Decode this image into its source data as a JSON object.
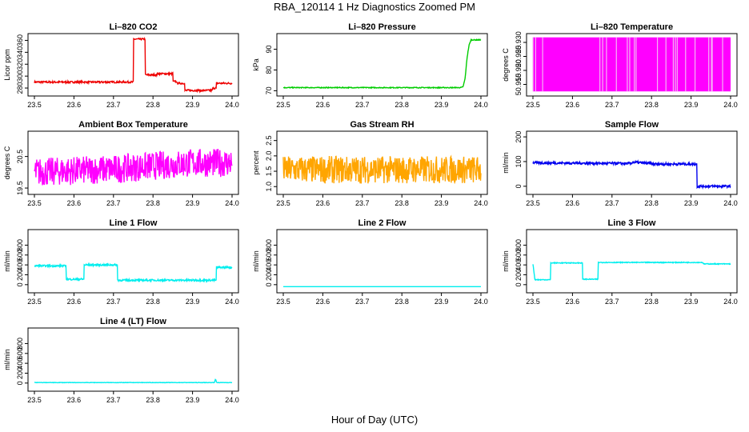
{
  "title": "RBA_120114  1 Hz Diagnostics Zoomed PM",
  "xlabel": "Hour of Day (UTC)",
  "colors": {
    "red": "#ee0000",
    "green": "#00cc00",
    "magenta": "#ff00ff",
    "orange": "#ffa500",
    "blue": "#0000ee",
    "cyan": "#00eeee"
  },
  "chart_data": [
    {
      "type": "line",
      "title": "Li–820 CO2",
      "ylabel": "Licor ppm",
      "color": "red",
      "xlim": [
        23.5,
        24.0
      ],
      "xticks": [
        "23.5",
        "23.6",
        "23.7",
        "23.8",
        "23.9",
        "24.0"
      ],
      "ylim": [
        272,
        366
      ],
      "yticks": [
        "280",
        "300",
        "320",
        "340",
        "360"
      ],
      "ytick_values": [
        280,
        300,
        320,
        340,
        360
      ],
      "series": [
        {
          "x": [
            23.5,
            23.75,
            23.75,
            23.78,
            23.78,
            23.81,
            23.81,
            23.85,
            23.85,
            23.86,
            23.86,
            23.88,
            23.88,
            23.95,
            23.95,
            23.96,
            23.96,
            24.0
          ],
          "y": [
            290,
            290,
            362,
            362,
            302,
            302,
            304,
            304,
            291,
            291,
            288,
            288,
            276,
            276,
            280,
            280,
            288,
            288
          ],
          "noise": 1.5
        }
      ]
    },
    {
      "type": "line",
      "title": "Li–820 Pressure",
      "ylabel": "kPa",
      "color": "green",
      "xlim": [
        23.5,
        24.0
      ],
      "xticks": [
        "23.5",
        "23.6",
        "23.7",
        "23.8",
        "23.9",
        "24.0"
      ],
      "ylim": [
        69,
        96
      ],
      "yticks": [
        "70",
        "80",
        "90"
      ],
      "ytick_values": [
        70,
        80,
        90
      ],
      "series": [
        {
          "x": [
            23.5,
            23.95,
            23.955,
            23.96,
            23.965,
            23.97,
            23.975,
            24.0
          ],
          "y": [
            71.5,
            71.5,
            72,
            76,
            86,
            92,
            94.5,
            94.5
          ],
          "noise": 0.2
        }
      ]
    },
    {
      "type": "line",
      "title": "Li–820 Temperature",
      "ylabel": "degrees C",
      "color": "magenta",
      "xlim": [
        23.5,
        24.0
      ],
      "xticks": [
        "23.5",
        "23.6",
        "23.7",
        "23.8",
        "23.9",
        "24.0"
      ],
      "ylim": [
        50.912,
        50.932
      ],
      "yticks": [
        "50.915",
        "50.920",
        "50.925",
        "50.930"
      ],
      "ytick_values": [
        50.915,
        50.92,
        50.925,
        50.93
      ],
      "series": [
        {
          "band": [
            50.9125,
            50.9318
          ],
          "x": [
            23.5,
            24.0
          ],
          "y": [
            50.92,
            50.92
          ]
        }
      ]
    },
    {
      "type": "line",
      "title": "Ambient Box Temperature",
      "ylabel": "degrees C",
      "color": "magenta",
      "xlim": [
        23.5,
        24.0
      ],
      "xticks": [
        "23.5",
        "23.6",
        "23.7",
        "23.8",
        "23.9",
        "24.0"
      ],
      "ylim": [
        19.4,
        21.2
      ],
      "yticks": [
        "19.5",
        "20.5"
      ],
      "ytick_values": [
        19.5,
        20.5
      ],
      "series": [
        {
          "x": [
            23.5,
            23.7,
            23.9,
            24.0
          ],
          "y": [
            20.0,
            20.1,
            20.3,
            20.3
          ],
          "noise": 0.45
        }
      ]
    },
    {
      "type": "line",
      "title": "Gas Stream RH",
      "ylabel": "percent",
      "color": "orange",
      "xlim": [
        23.5,
        24.0
      ],
      "xticks": [
        "23.5",
        "23.6",
        "23.7",
        "23.8",
        "23.9",
        "24.0"
      ],
      "ylim": [
        0.85,
        2.7
      ],
      "yticks": [
        "1.0",
        "1.5",
        "2.0",
        "2.5"
      ],
      "ytick_values": [
        1.0,
        1.5,
        2.0,
        2.5
      ],
      "series": [
        {
          "x": [
            23.5,
            24.0
          ],
          "y": [
            1.55,
            1.55
          ],
          "noise": 0.45
        }
      ]
    },
    {
      "type": "line",
      "title": "Sample Flow",
      "ylabel": "ml/min",
      "color": "blue",
      "xlim": [
        23.5,
        24.0
      ],
      "xticks": [
        "23.5",
        "23.6",
        "23.7",
        "23.8",
        "23.9",
        "24.0"
      ],
      "ylim": [
        -20,
        210
      ],
      "yticks": [
        "0",
        "100",
        "200"
      ],
      "ytick_values": [
        0,
        100,
        200
      ],
      "series": [
        {
          "x": [
            23.5,
            23.75,
            23.75,
            23.8,
            23.8,
            23.915,
            23.915,
            24.0
          ],
          "y": [
            95,
            92,
            98,
            92,
            90,
            90,
            0,
            0
          ],
          "noise": 5
        }
      ]
    },
    {
      "type": "line",
      "title": "Line 1 Flow",
      "ylabel": "ml/min",
      "color": "cyan",
      "xlim": [
        23.5,
        24.0
      ],
      "xticks": [
        "23.5",
        "23.6",
        "23.7",
        "23.8",
        "23.9",
        "24.0"
      ],
      "ylim": [
        -100,
        1050
      ],
      "yticks": [
        "0",
        "200",
        "400",
        "600",
        "800"
      ],
      "ytick_values": [
        0,
        200,
        400,
        600,
        800
      ],
      "series": [
        {
          "x": [
            23.5,
            23.58,
            23.58,
            23.625,
            23.625,
            23.71,
            23.71,
            23.96,
            23.96,
            24.0
          ],
          "y": [
            380,
            380,
            110,
            110,
            400,
            400,
            90,
            90,
            350,
            350
          ],
          "noise": 18
        }
      ]
    },
    {
      "type": "line",
      "title": "Line 2 Flow",
      "ylabel": "ml/min",
      "color": "cyan",
      "xlim": [
        23.5,
        24.0
      ],
      "xticks": [
        "23.5",
        "23.6",
        "23.7",
        "23.8",
        "23.9",
        "24.0"
      ],
      "ylim": [
        -100,
        1050
      ],
      "yticks": [
        "0",
        "200",
        "400",
        "600",
        "800"
      ],
      "ytick_values": [
        0,
        200,
        400,
        600,
        800
      ],
      "series": [
        {
          "x": [
            23.5,
            24.0
          ],
          "y": [
            -40,
            -40
          ],
          "noise": 0
        }
      ]
    },
    {
      "type": "line",
      "title": "Line 3 Flow",
      "ylabel": "ml/min",
      "color": "cyan",
      "xlim": [
        23.5,
        24.0
      ],
      "xticks": [
        "23.5",
        "23.6",
        "23.7",
        "23.8",
        "23.9",
        "24.0"
      ],
      "ylim": [
        -100,
        1050
      ],
      "yticks": [
        "0",
        "200",
        "400",
        "600",
        "800"
      ],
      "ytick_values": [
        0,
        200,
        400,
        600,
        800
      ],
      "series": [
        {
          "x": [
            23.5,
            23.505,
            23.505,
            23.545,
            23.545,
            23.625,
            23.625,
            23.665,
            23.665,
            23.93,
            23.93,
            24.0
          ],
          "y": [
            420,
            100,
            100,
            100,
            440,
            440,
            110,
            110,
            450,
            450,
            420,
            420
          ],
          "noise": 8
        }
      ]
    },
    {
      "type": "line",
      "title": "Line 4 (LT) Flow",
      "ylabel": "ml/min",
      "color": "cyan",
      "xlim": [
        23.5,
        24.0
      ],
      "xticks": [
        "23.5",
        "23.6",
        "23.7",
        "23.8",
        "23.9",
        "24.0"
      ],
      "ylim": [
        -100,
        1050
      ],
      "yticks": [
        "0",
        "200",
        "400",
        "600",
        "800"
      ],
      "ytick_values": [
        0,
        200,
        400,
        600,
        800
      ],
      "series": [
        {
          "x": [
            23.5,
            23.955,
            23.958,
            23.961,
            24.0
          ],
          "y": [
            10,
            10,
            80,
            10,
            10
          ],
          "noise": 4
        }
      ]
    }
  ]
}
